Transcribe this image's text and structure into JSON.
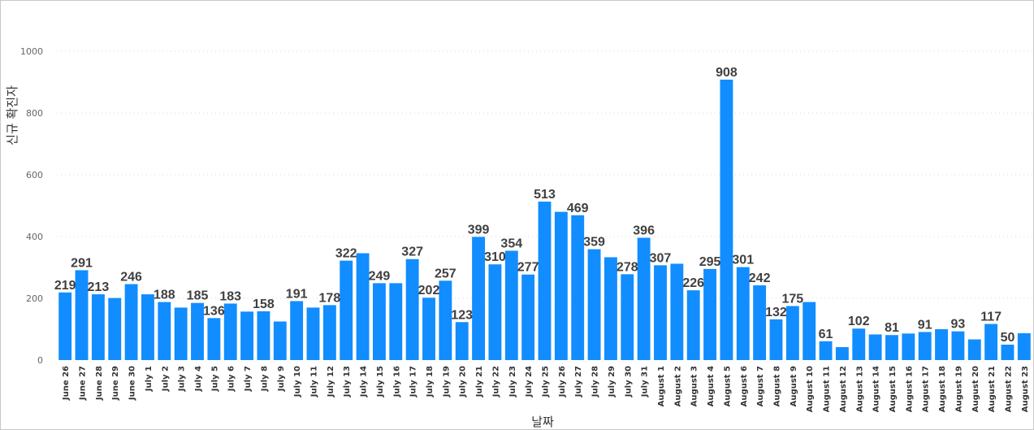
{
  "chart_data": {
    "type": "bar",
    "xlabel": "날짜",
    "ylabel": "신규 확진자",
    "ylim": [
      0,
      1100
    ],
    "yticks": [
      0,
      200,
      400,
      600,
      800,
      1000
    ],
    "grid": true,
    "bar_color": "#118DFF",
    "categories": [
      "June 26",
      "June 27",
      "June 28",
      "June 29",
      "June 30",
      "July 1",
      "July 2",
      "July 3",
      "July 4",
      "July 5",
      "July 6",
      "July 7",
      "July 8",
      "July 9",
      "July 10",
      "July 11",
      "July 12",
      "July 13",
      "July 14",
      "July 15",
      "July 16",
      "July 17",
      "July 18",
      "July 19",
      "July 20",
      "July 21",
      "July 22",
      "July 23",
      "July 24",
      "July 25",
      "July 26",
      "July 27",
      "July 28",
      "July 29",
      "July 30",
      "July 31",
      "August 1",
      "August 2",
      "August 3",
      "August 4",
      "August 5",
      "August 6",
      "August 7",
      "August 8",
      "August 9",
      "August 10",
      "August 11",
      "August 12",
      "August 13",
      "August 14",
      "August 15",
      "August 16",
      "August 17",
      "August 18",
      "August 19",
      "August 20",
      "August 21",
      "August 22",
      "August 23"
    ],
    "values": [
      219,
      291,
      213,
      201,
      246,
      213,
      188,
      170,
      185,
      136,
      183,
      157,
      158,
      125,
      191,
      170,
      178,
      322,
      346,
      249,
      249,
      327,
      202,
      257,
      123,
      399,
      310,
      354,
      277,
      513,
      480,
      469,
      359,
      333,
      278,
      396,
      307,
      312,
      226,
      295,
      908,
      301,
      242,
      132,
      175,
      188,
      61,
      42,
      102,
      83,
      81,
      86,
      91,
      100,
      93,
      67,
      117,
      50,
      87
    ],
    "data_labels": [
      "219",
      "291",
      "213",
      "",
      "246",
      "",
      "188",
      "",
      "185",
      "136",
      "183",
      "",
      "158",
      "",
      "191",
      "",
      "178",
      "322",
      "",
      "249",
      "",
      "327",
      "202",
      "257",
      "123",
      "399",
      "310",
      "354",
      "277",
      "513",
      "",
      "469",
      "359",
      "",
      "278",
      "396",
      "307",
      "",
      "226",
      "295",
      "908",
      "301",
      "242",
      "132",
      "175",
      "",
      "61",
      "",
      "102",
      "",
      "81",
      "",
      "91",
      "",
      "93",
      "",
      "117",
      "50",
      ""
    ]
  }
}
